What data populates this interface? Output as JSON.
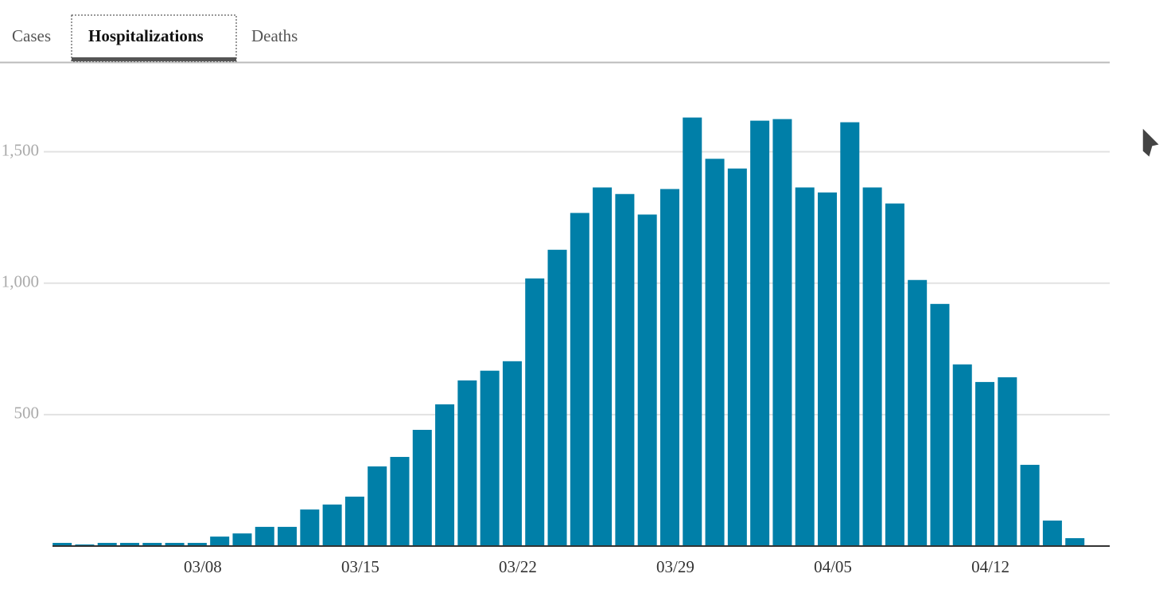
{
  "tabs": [
    "Cases",
    "Hospitalizations",
    "Deaths"
  ],
  "chart_data": {
    "type": "bar",
    "categories": [
      null,
      null,
      null,
      null,
      null,
      null,
      "03/08",
      null,
      null,
      null,
      null,
      null,
      null,
      "03/15",
      null,
      null,
      null,
      null,
      null,
      null,
      "03/22",
      null,
      null,
      null,
      null,
      null,
      null,
      "03/29",
      null,
      null,
      null,
      null,
      null,
      null,
      "04/05",
      null,
      null,
      null,
      null,
      null,
      null,
      "04/12",
      null,
      null,
      null,
      null
    ],
    "values": [
      12,
      6,
      12,
      12,
      12,
      12,
      12,
      36,
      48,
      73,
      73,
      139,
      158,
      188,
      303,
      339,
      442,
      539,
      630,
      667,
      703,
      1018,
      1127,
      1267,
      1364,
      1339,
      1261,
      1358,
      1630,
      1473,
      1436,
      1618,
      1624,
      1364,
      1345,
      1612,
      1364,
      1303,
      1012,
      921,
      691,
      624,
      642,
      309,
      97,
      30
    ],
    "color": "#007fa8",
    "ylim": [
      0,
      1750
    ],
    "yticks": [
      500,
      {
        "value": 1000,
        "label": "1,000"
      },
      {
        "value": 1500,
        "label": "1,500"
      }
    ],
    "grid": true
  }
}
